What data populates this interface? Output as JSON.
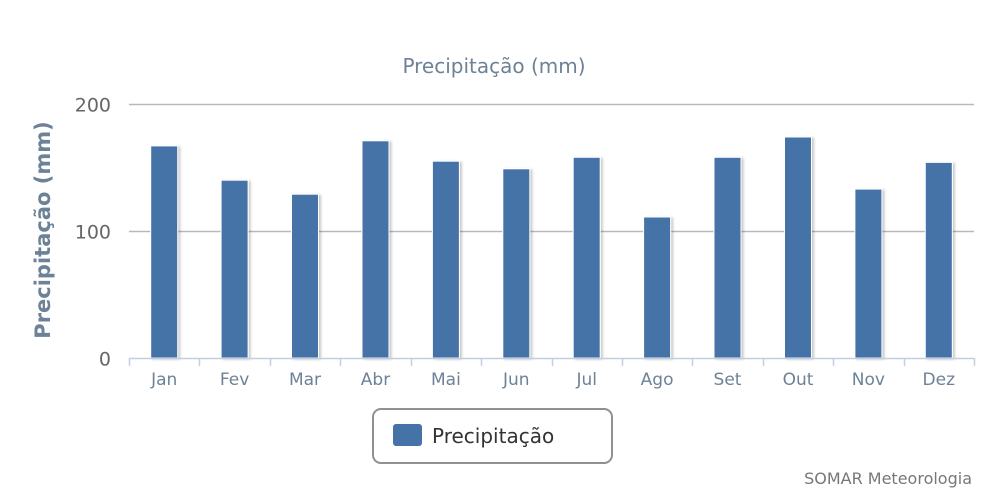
{
  "chart_data": {
    "type": "bar",
    "title": "Precipitação (mm)",
    "xlabel": "",
    "ylabel": "Precipitação (mm)",
    "categories": [
      "Jan",
      "Fev",
      "Mar",
      "Abr",
      "Mai",
      "Jun",
      "Jul",
      "Ago",
      "Set",
      "Out",
      "Nov",
      "Dez"
    ],
    "series": [
      {
        "name": "Precipitação",
        "color": "#4572a7",
        "values": [
          167,
          140,
          129,
          171,
          155,
          149,
          158,
          111,
          158,
          174,
          133,
          154
        ]
      }
    ],
    "ylim": [
      0,
      200
    ],
    "yticks": [
      0,
      100,
      200
    ],
    "grid": true,
    "legend_position": "bottom-center"
  },
  "credit": "SOMAR Meteorologia"
}
